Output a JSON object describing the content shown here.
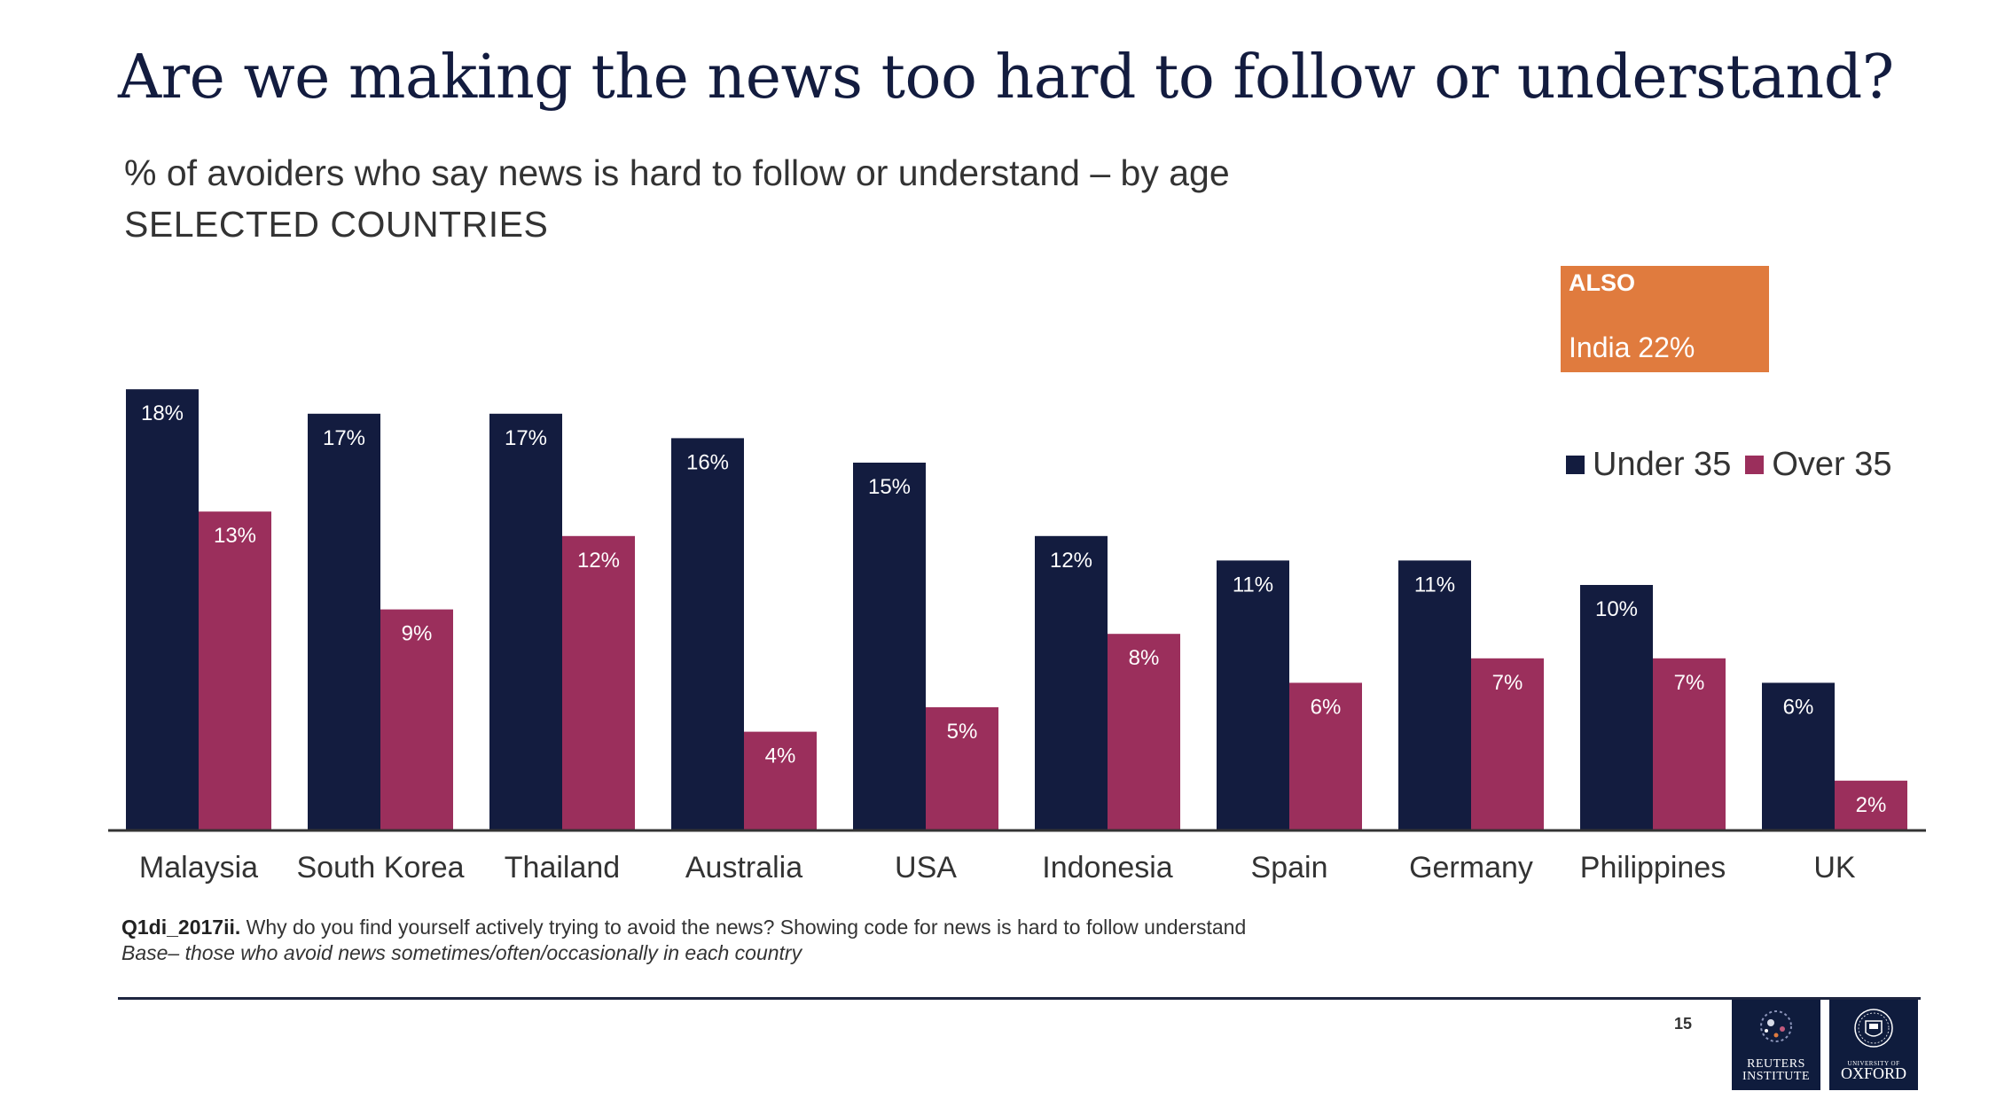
{
  "slide": {
    "title": "Are we making the news too hard to follow or understand?",
    "subtitle": "% of avoiders who say news is hard to follow or understand – by age",
    "subtitle2": "SELECTED COUNTRIES",
    "page_number": "15"
  },
  "also_box": {
    "heading": "ALSO",
    "text": "India 22%",
    "color": "#e07b3e"
  },
  "colors": {
    "under35": "#131c3f",
    "over35": "#9b2f5c",
    "axis": "#333333",
    "logo_bg": "#0f1c3d"
  },
  "footnote": {
    "code": "Q1di_2017ii.",
    "question": " Why do you find yourself actively trying to avoid the news? Showing code for news is hard to follow understand",
    "base": "Base– those who avoid news sometimes/often/occasionally in each country"
  },
  "logos": {
    "reuters_line1": "REUTERS",
    "reuters_line2": "INSTITUTE",
    "oxford_small": "UNIVERSITY OF",
    "oxford_big": "OXFORD"
  },
  "chart_data": {
    "type": "bar",
    "categories": [
      "Malaysia",
      "South Korea",
      "Thailand",
      "Australia",
      "USA",
      "Indonesia",
      "Spain",
      "Germany",
      "Philippines",
      "UK"
    ],
    "series": [
      {
        "name": "Under 35",
        "values": [
          18,
          17,
          17,
          16,
          15,
          12,
          11,
          11,
          10,
          6
        ],
        "color": "#131c3f"
      },
      {
        "name": "Over 35",
        "values": [
          13,
          9,
          12,
          4,
          5,
          8,
          6,
          7,
          7,
          2
        ],
        "color": "#9b2f5c"
      }
    ],
    "value_format": "{v}%",
    "ylim": [
      0,
      18
    ],
    "grid": false,
    "legend": "top-right"
  }
}
